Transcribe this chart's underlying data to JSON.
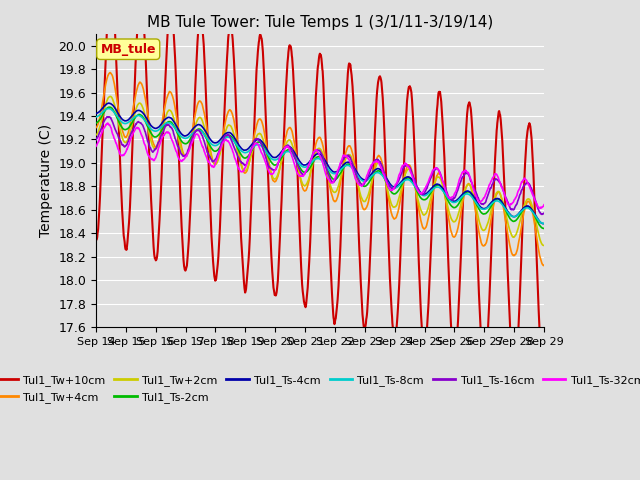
{
  "title": "MB Tule Tower: Tule Temps 1 (3/1/11-3/19/14)",
  "ylabel": "Temperature (C)",
  "ylim": [
    17.6,
    20.1
  ],
  "yticks": [
    17.6,
    17.8,
    18.0,
    18.2,
    18.4,
    18.6,
    18.8,
    19.0,
    19.2,
    19.4,
    19.6,
    19.8,
    20.0
  ],
  "plot_bg_color": "#e0e0e0",
  "grid_color": "#ffffff",
  "xtick_labels": [
    "Sep 14",
    "Sep 15",
    "Sep 16",
    "Sep 17",
    "Sep 18",
    "Sep 19",
    "Sep 20",
    "Sep 21",
    "Sep 22",
    "Sep 23",
    "Sep 24",
    "Sep 25",
    "Sep 26",
    "Sep 27",
    "Sep 28",
    "Sep 29"
  ],
  "series": [
    {
      "label": "Tul1_Tw+10cm",
      "color": "#cc0000",
      "lw": 1.5,
      "amp": 1.1,
      "base_s": 19.45,
      "base_e": 18.2,
      "phase": 1.57,
      "small_amp": 0.0
    },
    {
      "label": "Tul1_Tw+4cm",
      "color": "#ff8800",
      "lw": 1.2,
      "amp": 0.25,
      "base_s": 19.55,
      "base_e": 18.38,
      "phase": 1.57,
      "small_amp": 0.0
    },
    {
      "label": "Tul1_Tw+2cm",
      "color": "#cccc00",
      "lw": 1.2,
      "amp": 0.18,
      "base_s": 19.42,
      "base_e": 18.45,
      "phase": 1.57,
      "small_amp": 0.0
    },
    {
      "label": "Tul1_Ts-2cm",
      "color": "#00bb00",
      "lw": 1.2,
      "amp": 0.08,
      "base_s": 19.42,
      "base_e": 18.5,
      "phase": 1.57,
      "small_amp": 0.0
    },
    {
      "label": "Tul1_Ts-4cm",
      "color": "#0000aa",
      "lw": 1.2,
      "amp": 0.06,
      "base_s": 19.48,
      "base_e": 18.52,
      "phase": 1.57,
      "small_amp": 0.0
    },
    {
      "label": "Tul1_Ts-8cm",
      "color": "#00cccc",
      "lw": 1.2,
      "amp": 0.05,
      "base_s": 19.44,
      "base_e": 18.51,
      "phase": 1.57,
      "small_amp": 0.0
    },
    {
      "label": "Tul1_Ts-16cm",
      "color": "#8800cc",
      "lw": 1.2,
      "amp": 0.12,
      "base_s": 19.3,
      "base_e": 18.68,
      "phase": 1.57,
      "small_amp": 0.0
    },
    {
      "label": "Tul1_Ts-32cm",
      "color": "#ff00ff",
      "lw": 1.2,
      "amp": 0.12,
      "base_s": 19.22,
      "base_e": 18.72,
      "phase": 1.57,
      "small_amp": 0.0
    }
  ],
  "legend_ncol": 6,
  "legend_nrow2_ncol": 2,
  "legend_box_label": "MB_tule",
  "legend_box_text_color": "#cc0000",
  "legend_box_face_color": "#ffff99",
  "legend_box_edge_color": "#aaaa00"
}
